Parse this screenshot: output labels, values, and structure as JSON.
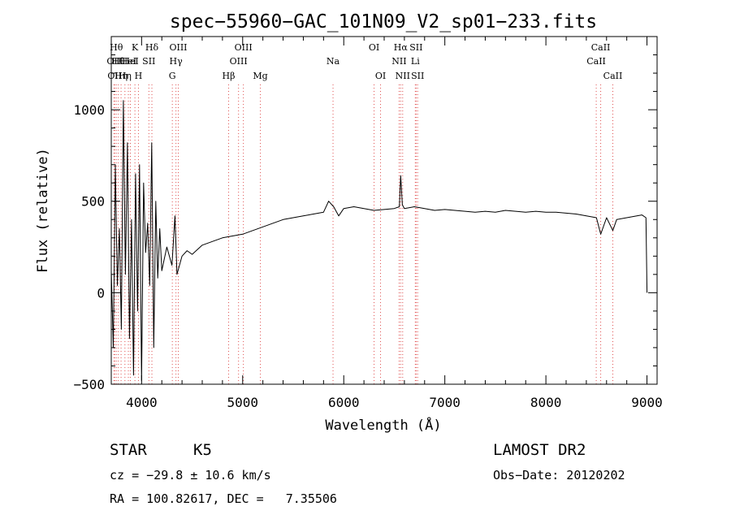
{
  "chart_data": {
    "type": "line",
    "title": "spec−55960−GAC_101N09_V2_sp01−233.fits",
    "xlabel": "Wavelength (Å)",
    "ylabel": "Flux (relative)",
    "xlim": [
      3700,
      9100
    ],
    "ylim": [
      -500,
      1400
    ],
    "x_ticks": [
      4000,
      5000,
      6000,
      7000,
      8000,
      9000
    ],
    "x_tick_labels": [
      "4000",
      "5000",
      "6000",
      "7000",
      "8000",
      "9000"
    ],
    "y_ticks": [
      -500,
      0,
      500,
      1000
    ],
    "y_tick_labels": [
      "−500",
      "0",
      "500",
      "1000"
    ],
    "grid": false,
    "legend": "none",
    "line_color": "#000000",
    "marker_color": "#e05050",
    "series": [
      {
        "x": [
          3700,
          3720,
          3740,
          3760,
          3780,
          3800,
          3820,
          3840,
          3860,
          3880,
          3900,
          3920,
          3940,
          3960,
          3980,
          4000,
          4020,
          4040,
          4060,
          4080,
          4100,
          4120,
          4140,
          4160,
          4180,
          4200,
          4250,
          4300,
          4330,
          4350,
          4400,
          4450,
          4500,
          4600,
          4700,
          4800,
          4900,
          5000,
          5100,
          5200,
          5300,
          5400,
          5500,
          5600,
          5700,
          5800,
          5850,
          5900,
          5950,
          6000,
          6100,
          6200,
          6300,
          6400,
          6500,
          6550,
          6563,
          6580,
          6600,
          6700,
          6800,
          6900,
          7000,
          7100,
          7200,
          7300,
          7400,
          7500,
          7600,
          7700,
          7800,
          7900,
          8000,
          8100,
          8200,
          8300,
          8400,
          8500,
          8542,
          8600,
          8662,
          8700,
          8800,
          8900,
          8950,
          8990,
          9000
        ],
        "y": [
          120,
          -300,
          700,
          40,
          350,
          -200,
          1050,
          100,
          820,
          -250,
          400,
          -450,
          650,
          -100,
          700,
          -480,
          600,
          220,
          380,
          40,
          820,
          -300,
          500,
          80,
          350,
          120,
          250,
          150,
          420,
          100,
          200,
          230,
          210,
          260,
          280,
          300,
          310,
          320,
          340,
          360,
          380,
          400,
          410,
          420,
          430,
          440,
          500,
          470,
          420,
          460,
          470,
          460,
          450,
          455,
          460,
          470,
          640,
          480,
          460,
          470,
          460,
          450,
          455,
          450,
          445,
          440,
          445,
          440,
          450,
          445,
          440,
          445,
          440,
          440,
          435,
          430,
          420,
          410,
          320,
          410,
          340,
          400,
          410,
          420,
          425,
          410,
          0
        ]
      }
    ],
    "line_markers": [
      {
        "x": 3726,
        "label": "OII",
        "row": 2
      },
      {
        "x": 3734,
        "label": "OII",
        "row": 3
      },
      {
        "x": 3750,
        "label": "Hθ",
        "row": 1
      },
      {
        "x": 3770,
        "label": "Hθ",
        "row": 2
      },
      {
        "x": 3797,
        "label": "Hη",
        "row": 3
      },
      {
        "x": 3835,
        "label": "Hη",
        "row": 3
      },
      {
        "x": 3869,
        "label": "HeI",
        "row": 2
      },
      {
        "x": 3889,
        "label": "HeI",
        "row": 2
      },
      {
        "x": 3934,
        "label": "K",
        "row": 1
      },
      {
        "x": 3969,
        "label": "H",
        "row": 3
      },
      {
        "x": 4072,
        "label": "SII",
        "row": 2
      },
      {
        "x": 4102,
        "label": "Hδ",
        "row": 1
      },
      {
        "x": 4304,
        "label": "G",
        "row": 3
      },
      {
        "x": 4340,
        "label": "Hγ",
        "row": 2
      },
      {
        "x": 4363,
        "label": "OIII",
        "row": 1
      },
      {
        "x": 4861,
        "label": "Hβ",
        "row": 3
      },
      {
        "x": 4959,
        "label": "OIII",
        "row": 2
      },
      {
        "x": 5007,
        "label": "OIII",
        "row": 1
      },
      {
        "x": 5175,
        "label": "Mg",
        "row": 3
      },
      {
        "x": 5894,
        "label": "Na",
        "row": 2
      },
      {
        "x": 6300,
        "label": "OI",
        "row": 1
      },
      {
        "x": 6364,
        "label": "OI",
        "row": 3
      },
      {
        "x": 6548,
        "label": "NII",
        "row": 2
      },
      {
        "x": 6563,
        "label": "Hα",
        "row": 1
      },
      {
        "x": 6583,
        "label": "NII",
        "row": 3
      },
      {
        "x": 6708,
        "label": "Li",
        "row": 2
      },
      {
        "x": 6716,
        "label": "SII",
        "row": 1
      },
      {
        "x": 6731,
        "label": "SII",
        "row": 3
      },
      {
        "x": 8498,
        "label": "CaII",
        "row": 2
      },
      {
        "x": 8542,
        "label": "CaII",
        "row": 1
      },
      {
        "x": 8662,
        "label": "CaII",
        "row": 3
      }
    ]
  },
  "info": {
    "object_class": "STAR",
    "subclass": "K5",
    "survey": "LAMOST DR2",
    "redshift": "cz = −29.8 ± 10.6 km/s",
    "obs_date": "Obs−Date: 20120202",
    "coords": "RA = 100.82617, DEC =   7.35506"
  }
}
